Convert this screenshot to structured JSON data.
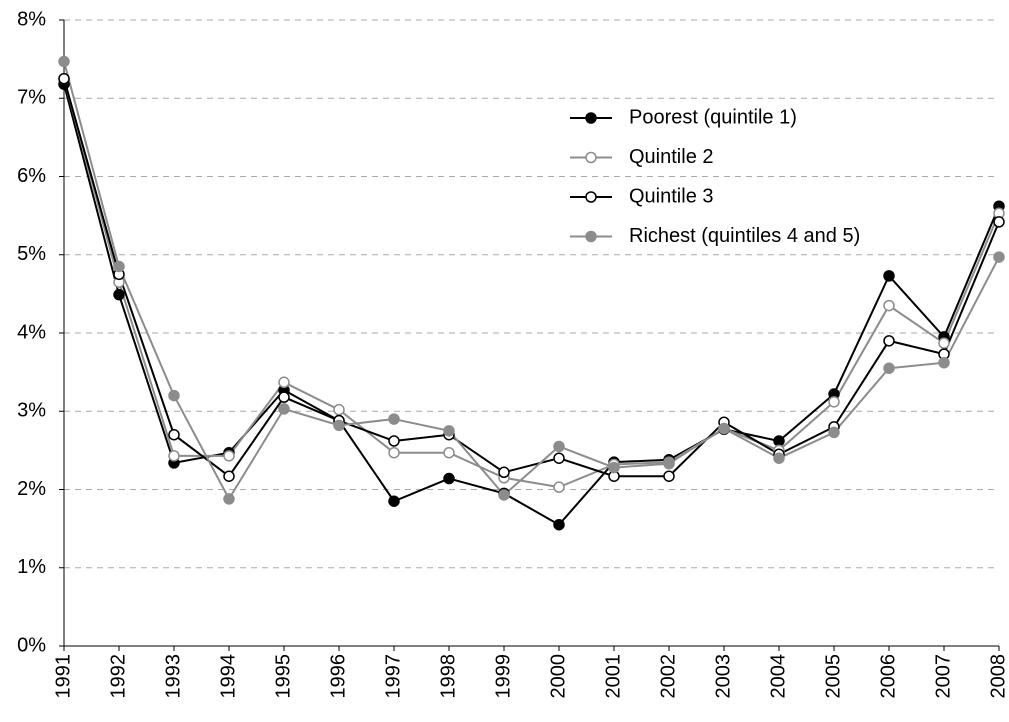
{
  "chart_data": {
    "type": "line",
    "categories": [
      "1991",
      "1992",
      "1993",
      "1994",
      "1995",
      "1996",
      "1997",
      "1998",
      "1999",
      "2000",
      "2001",
      "2002",
      "2003",
      "2004",
      "2005",
      "2006",
      "2007",
      "2008"
    ],
    "series": [
      {
        "name": "Poorest (quintile 1)",
        "color": "#000000",
        "marker_fill": "#000000",
        "values": [
          7.18,
          4.49,
          2.34,
          2.47,
          3.27,
          2.88,
          1.85,
          2.14,
          1.95,
          1.55,
          2.35,
          2.38,
          2.77,
          2.62,
          3.22,
          4.73,
          3.95,
          5.62
        ]
      },
      {
        "name": "Quintile 2",
        "color": "#8c8c8c",
        "marker_fill": "#ffffff",
        "values": [
          7.25,
          4.65,
          2.43,
          2.43,
          3.37,
          3.02,
          2.47,
          2.47,
          2.15,
          2.03,
          2.32,
          2.35,
          2.78,
          2.5,
          3.12,
          4.35,
          3.87,
          5.53
        ]
      },
      {
        "name": "Quintile 3",
        "color": "#000000",
        "marker_fill": "#ffffff",
        "values": [
          7.25,
          4.75,
          2.7,
          2.17,
          3.18,
          2.88,
          2.62,
          2.7,
          2.22,
          2.4,
          2.17,
          2.17,
          2.86,
          2.45,
          2.8,
          3.9,
          3.73,
          5.42
        ]
      },
      {
        "name": "Richest (quintiles 4 and 5)",
        "color": "#8c8c8c",
        "marker_fill": "#8c8c8c",
        "values": [
          7.47,
          4.85,
          3.2,
          1.88,
          3.03,
          2.82,
          2.9,
          2.75,
          1.93,
          2.55,
          2.28,
          2.33,
          2.78,
          2.4,
          2.73,
          3.55,
          3.62,
          4.97
        ]
      }
    ],
    "ylim": [
      0,
      8
    ],
    "yticks": [
      {
        "value": 0,
        "label": "0%"
      },
      {
        "value": 1,
        "label": "1%"
      },
      {
        "value": 2,
        "label": "2%"
      },
      {
        "value": 3,
        "label": "3%"
      },
      {
        "value": 4,
        "label": "4%"
      },
      {
        "value": 5,
        "label": "5%"
      },
      {
        "value": 6,
        "label": "6%"
      },
      {
        "value": 7,
        "label": "7%"
      },
      {
        "value": 8,
        "label": "8%"
      }
    ],
    "grid": true
  }
}
